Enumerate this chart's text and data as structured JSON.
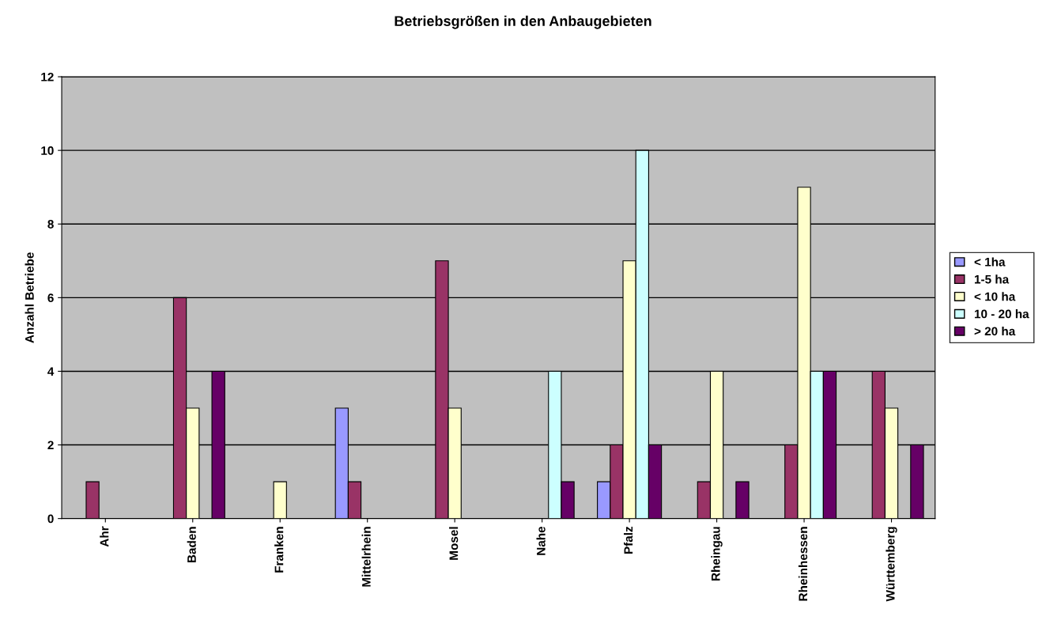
{
  "chart_data": {
    "type": "bar",
    "title": "Betriebsgrößen in den Anbaugebieten",
    "ylabel": "Anzahl Betriebe",
    "categories": [
      "Ahr",
      "Baden",
      "Franken",
      "Mittelrhein",
      "Mosel",
      "Nahe",
      "Pfalz",
      "Rheingau",
      "Rheinhessen",
      "Württemberg"
    ],
    "series": [
      {
        "name": "< 1ha",
        "color": "#9999ff",
        "values": [
          null,
          null,
          null,
          3,
          null,
          null,
          1,
          null,
          null,
          null
        ]
      },
      {
        "name": "1-5 ha",
        "color": "#993366",
        "values": [
          1,
          6,
          null,
          1,
          7,
          null,
          2,
          1,
          2,
          4
        ]
      },
      {
        "name": "< 10 ha",
        "color": "#ffffcc",
        "values": [
          null,
          3,
          1,
          null,
          3,
          null,
          7,
          4,
          9,
          3
        ]
      },
      {
        "name": "10 - 20 ha",
        "color": "#ccffff",
        "values": [
          null,
          null,
          null,
          null,
          null,
          4,
          10,
          null,
          4,
          null
        ]
      },
      {
        "name": "> 20 ha",
        "color": "#660066",
        "values": [
          null,
          4,
          null,
          null,
          null,
          1,
          2,
          1,
          4,
          2
        ]
      }
    ],
    "ylim": [
      0,
      12
    ],
    "yticks": [
      0,
      2,
      4,
      6,
      8,
      10,
      12
    ],
    "grid": "y",
    "legend": "right"
  }
}
